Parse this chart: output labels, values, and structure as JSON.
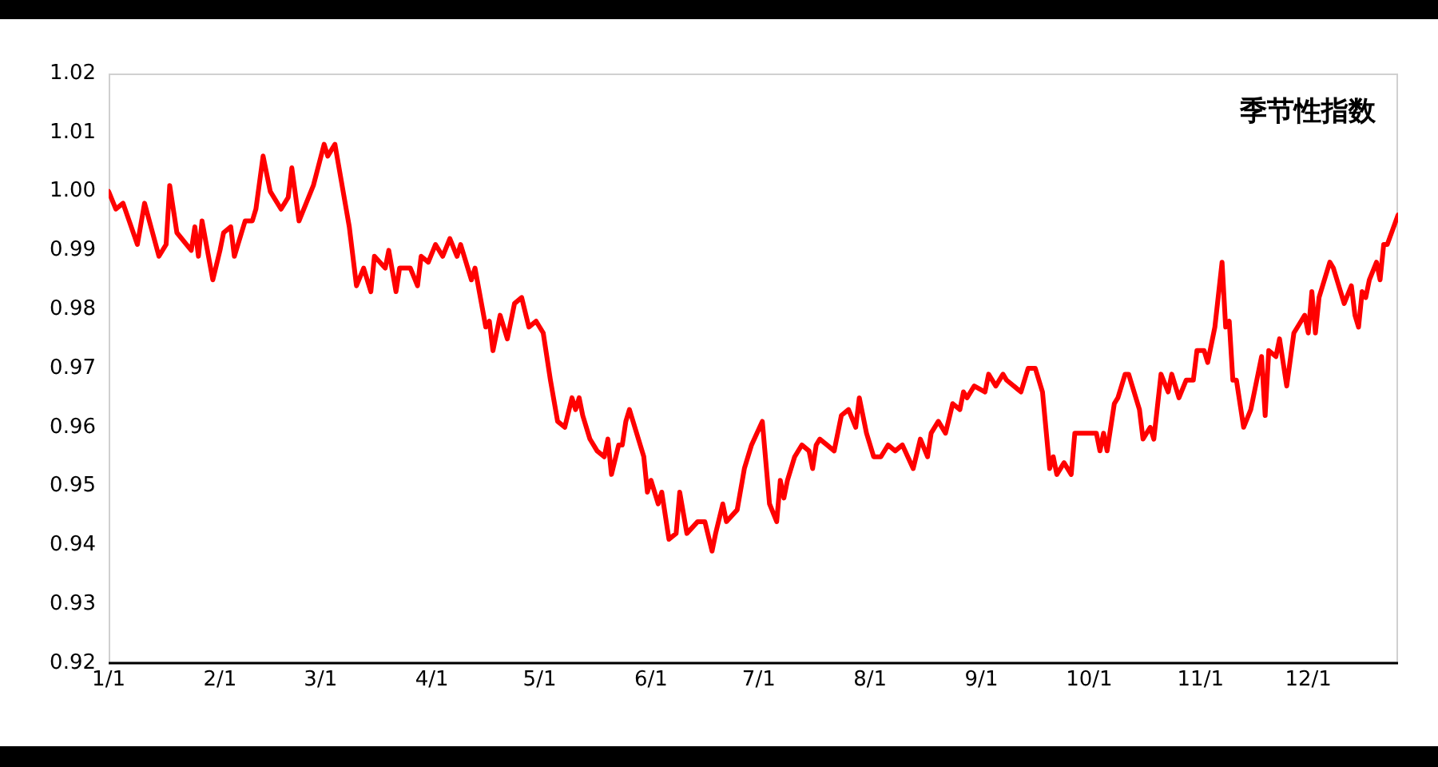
{
  "chart_data": {
    "type": "line",
    "title": "季节性指数",
    "x": [
      "--01-01",
      "--01-03",
      "--01-05",
      "--01-09",
      "--01-11",
      "--01-15",
      "--01-17",
      "--01-18",
      "--01-20",
      "--01-24",
      "--01-25",
      "--01-26",
      "--01-27",
      "--01-30",
      "--02-01",
      "--02-02",
      "--02-04",
      "--02-05",
      "--02-08",
      "--02-10",
      "--02-11",
      "--02-13",
      "--02-15",
      "--02-18",
      "--02-20",
      "--02-21",
      "--02-23",
      "--02-27",
      "--03-02",
      "--03-03",
      "--03-05",
      "--03-09",
      "--03-11",
      "--03-13",
      "--03-15",
      "--03-16",
      "--03-19",
      "--03-20",
      "--03-22",
      "--03-23",
      "--03-26",
      "--03-28",
      "--03-29",
      "--03-31",
      "--04-02",
      "--04-04",
      "--04-06",
      "--04-08",
      "--04-09",
      "--04-12",
      "--04-13",
      "--04-16",
      "--04-17",
      "--04-18",
      "--04-20",
      "--04-22",
      "--04-24",
      "--04-26",
      "--04-28",
      "--04-30",
      "--05-02",
      "--05-04",
      "--05-06",
      "--05-08",
      "--05-10",
      "--05-11",
      "--05-12",
      "--05-13",
      "--05-15",
      "--05-17",
      "--05-19",
      "--05-20",
      "--05-21",
      "--05-23",
      "--05-24",
      "--05-25",
      "--05-26",
      "--05-30",
      "--05-31",
      "--06-01",
      "--06-03",
      "--06-04",
      "--06-06",
      "--06-08",
      "--06-09",
      "--06-11",
      "--06-14",
      "--06-16",
      "--06-18",
      "--06-19",
      "--06-21",
      "--06-22",
      "--06-25",
      "--06-27",
      "--06-29",
      "--07-02",
      "--07-04",
      "--07-06",
      "--07-07",
      "--07-08",
      "--07-09",
      "--07-11",
      "--07-13",
      "--07-15",
      "--07-16",
      "--07-17",
      "--07-18",
      "--07-20",
      "--07-22",
      "--07-24",
      "--07-26",
      "--07-28",
      "--07-29",
      "--07-31",
      "--08-02",
      "--08-04",
      "--08-06",
      "--08-08",
      "--08-10",
      "--08-13",
      "--08-15",
      "--08-17",
      "--08-18",
      "--08-20",
      "--08-22",
      "--08-24",
      "--08-26",
      "--08-27",
      "--08-28",
      "--08-30",
      "--09-02",
      "--09-03",
      "--09-05",
      "--09-07",
      "--09-08",
      "--09-12",
      "--09-14",
      "--09-16",
      "--09-18",
      "--09-20",
      "--09-21",
      "--09-22",
      "--09-24",
      "--09-26",
      "--09-27",
      "--10-03",
      "--10-04",
      "--10-05",
      "--10-06",
      "--10-08",
      "--10-09",
      "--10-11",
      "--10-12",
      "--10-15",
      "--10-16",
      "--10-18",
      "--10-19",
      "--10-21",
      "--10-23",
      "--10-24",
      "--10-26",
      "--10-28",
      "--10-30",
      "--10-31",
      "--11-02",
      "--11-03",
      "--11-05",
      "--11-07",
      "--11-08",
      "--11-09",
      "--11-10",
      "--11-11",
      "--11-13",
      "--11-15",
      "--11-16",
      "--11-18",
      "--11-19",
      "--11-20",
      "--11-22",
      "--11-23",
      "--11-25",
      "--11-27",
      "--11-29",
      "--11-30",
      "--12-01",
      "--12-02",
      "--12-03",
      "--12-04",
      "--12-07",
      "--12-08",
      "--12-11",
      "--12-13",
      "--12-14",
      "--12-15",
      "--12-16",
      "--12-17",
      "--12-18",
      "--12-20",
      "--12-21",
      "--12-22",
      "--12-23",
      "--12-26"
    ],
    "series": [
      {
        "color": "#ff0000",
        "values": [
          1.0,
          0.997,
          0.998,
          0.991,
          0.998,
          0.989,
          0.991,
          1.001,
          0.993,
          0.99,
          0.994,
          0.989,
          0.995,
          0.985,
          0.99,
          0.993,
          0.994,
          0.989,
          0.995,
          0.995,
          0.997,
          1.006,
          1.0,
          0.997,
          0.999,
          1.004,
          0.995,
          1.001,
          1.008,
          1.006,
          1.008,
          0.994,
          0.984,
          0.987,
          0.983,
          0.989,
          0.987,
          0.99,
          0.983,
          0.987,
          0.987,
          0.984,
          0.989,
          0.988,
          0.991,
          0.989,
          0.992,
          0.989,
          0.991,
          0.985,
          0.987,
          0.977,
          0.978,
          0.973,
          0.979,
          0.975,
          0.981,
          0.982,
          0.977,
          0.978,
          0.976,
          0.968,
          0.961,
          0.96,
          0.965,
          0.963,
          0.965,
          0.962,
          0.958,
          0.956,
          0.955,
          0.958,
          0.952,
          0.957,
          0.957,
          0.961,
          0.963,
          0.955,
          0.949,
          0.951,
          0.947,
          0.949,
          0.941,
          0.942,
          0.949,
          0.942,
          0.944,
          0.944,
          0.939,
          0.942,
          0.947,
          0.944,
          0.946,
          0.953,
          0.957,
          0.961,
          0.947,
          0.944,
          0.951,
          0.948,
          0.951,
          0.955,
          0.957,
          0.956,
          0.953,
          0.957,
          0.958,
          0.957,
          0.956,
          0.962,
          0.963,
          0.96,
          0.965,
          0.959,
          0.955,
          0.955,
          0.957,
          0.956,
          0.957,
          0.953,
          0.958,
          0.955,
          0.959,
          0.961,
          0.959,
          0.964,
          0.963,
          0.966,
          0.965,
          0.967,
          0.966,
          0.969,
          0.967,
          0.969,
          0.968,
          0.966,
          0.97,
          0.97,
          0.966,
          0.953,
          0.955,
          0.952,
          0.954,
          0.952,
          0.959,
          0.959,
          0.956,
          0.959,
          0.956,
          0.964,
          0.965,
          0.969,
          0.969,
          0.963,
          0.958,
          0.96,
          0.958,
          0.969,
          0.966,
          0.969,
          0.965,
          0.968,
          0.968,
          0.973,
          0.973,
          0.971,
          0.977,
          0.988,
          0.977,
          0.978,
          0.968,
          0.968,
          0.96,
          0.963,
          0.966,
          0.972,
          0.962,
          0.973,
          0.972,
          0.975,
          0.967,
          0.976,
          0.978,
          0.979,
          0.976,
          0.983,
          0.976,
          0.982,
          0.988,
          0.987,
          0.981,
          0.984,
          0.979,
          0.977,
          0.983,
          0.982,
          0.985,
          0.988,
          0.985,
          0.991,
          0.991,
          0.996
        ]
      }
    ],
    "xlim": [
      "--01-01",
      "--12-26"
    ],
    "xticks": [
      {
        "value": "--01-01",
        "label": "1/1"
      },
      {
        "value": "--02-01",
        "label": "2/1"
      },
      {
        "value": "--03-01",
        "label": "3/1"
      },
      {
        "value": "--04-01",
        "label": "4/1"
      },
      {
        "value": "--05-01",
        "label": "5/1"
      },
      {
        "value": "--06-01",
        "label": "6/1"
      },
      {
        "value": "--07-01",
        "label": "7/1"
      },
      {
        "value": "--08-01",
        "label": "8/1"
      },
      {
        "value": "--09-01",
        "label": "9/1"
      },
      {
        "value": "--10-01",
        "label": "10/1"
      },
      {
        "value": "--11-01",
        "label": "11/1"
      },
      {
        "value": "--12-01",
        "label": "12/1"
      }
    ],
    "ylim": [
      0.92,
      1.02
    ],
    "yticks": [
      0.92,
      0.93,
      0.94,
      0.95,
      0.96,
      0.97,
      0.98,
      0.99,
      {
        "value": 1.0,
        "label": "1.00"
      },
      1.01,
      1.02
    ],
    "marker": "none",
    "line_style": "solid"
  }
}
